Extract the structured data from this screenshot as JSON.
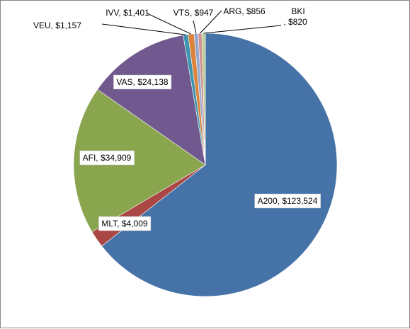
{
  "chart_data": {
    "type": "pie",
    "title": "",
    "slices": [
      {
        "name": "A200",
        "value": 123524,
        "label_line1": "A200, $123,524",
        "label_line2": "",
        "color": "#4572A7",
        "boxed": true
      },
      {
        "name": "MLT",
        "value": 4009,
        "label_line1": "MLT, $4,009",
        "label_line2": "",
        "color": "#AA4643",
        "boxed": true
      },
      {
        "name": "AFI",
        "value": 34909,
        "label_line1": "AFI, $34,909",
        "label_line2": "",
        "color": "#89A54E",
        "boxed": true
      },
      {
        "name": "VAS",
        "value": 24138,
        "label_line1": "VAS, $24,138",
        "label_line2": "",
        "color": "#71588F",
        "boxed": true
      },
      {
        "name": "VEU",
        "value": 1157,
        "label_line1": "VEU, $1,157",
        "label_line2": "",
        "color": "#3D96AE",
        "boxed": false
      },
      {
        "name": "IVV",
        "value": 1401,
        "label_line1": "IVV, $1,401",
        "label_line2": "",
        "color": "#DB843D",
        "boxed": false
      },
      {
        "name": "VTS",
        "value": 947,
        "label_line1": "VTS, $947",
        "label_line2": "",
        "color": "#93A9CF",
        "boxed": false
      },
      {
        "name": "ARG",
        "value": 856,
        "label_line1": "ARG, $856",
        "label_line2": "",
        "color": "#D19392",
        "boxed": false
      },
      {
        "name": "BKI",
        "value": 820,
        "label_line1": "BKI",
        "label_line2": ", $820",
        "color": "#B9CD96",
        "boxed": false
      }
    ],
    "start_angle_deg": 0,
    "direction": "clockwise",
    "legend": "none"
  }
}
